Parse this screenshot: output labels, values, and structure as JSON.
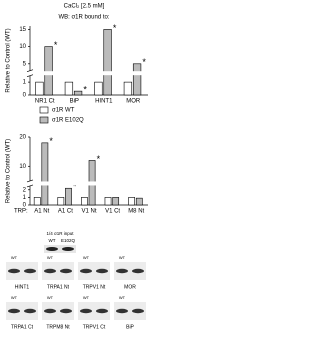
{
  "header": {
    "title": "CaCl₂ [2.5 mM]",
    "subtitle": "WB: σ1R bound to:"
  },
  "chart_data": [
    {
      "type": "bar",
      "y_label": "Relative to Control (WT)",
      "categories": [
        "NR1 Ct",
        "BiP",
        "HINT1",
        "MOR"
      ],
      "series": [
        {
          "name": "σ1R WT",
          "color": "#ffffff",
          "values": [
            1,
            1,
            1,
            1
          ]
        },
        {
          "name": "σ1R E102Q",
          "color": "#bbbbbb",
          "values": [
            10,
            0.3,
            15,
            5
          ],
          "markers": [
            "*",
            "*",
            "*",
            "*"
          ]
        }
      ],
      "ylim": [
        0,
        16
      ],
      "ybreak": [
        1.5,
        3
      ],
      "yticks": [
        0,
        1,
        5,
        10,
        15
      ]
    },
    {
      "type": "bar",
      "y_label": "Relative to Control (WT)",
      "x_label": "TRP:",
      "categories": [
        "A1 Nt",
        "A1 Ct",
        "V1 Nt",
        "V1 Ct",
        "M8 Nt"
      ],
      "series": [
        {
          "color": "#ffffff",
          "values": [
            1,
            1,
            1,
            1,
            1
          ]
        },
        {
          "color": "#bbbbbb",
          "values": [
            18,
            2.2,
            12,
            1,
            0.9
          ],
          "markers": [
            "*",
            "*",
            "*",
            null,
            null
          ]
        }
      ],
      "ylim": [
        0,
        20
      ],
      "ybreak": [
        2.5,
        5
      ],
      "yticks": [
        0,
        1,
        2,
        10,
        20
      ]
    }
  ],
  "blots": {
    "input_label": "1/4 σ1R input",
    "input_lanes": [
      "WT",
      "E102Q"
    ],
    "rows": [
      [
        {
          "label": "HINT1",
          "lane": "WT"
        },
        {
          "label": "TRPA1 Nt",
          "lane": "WT"
        },
        {
          "label": "TRPV1 Nt",
          "lane": "WT"
        },
        {
          "label": "MOR",
          "lane": "WT"
        }
      ],
      [
        {
          "label": "TRPA1 Ct",
          "lane": "WT"
        },
        {
          "label": "TRPM8 Nt",
          "lane": "WT"
        },
        {
          "label": "TRPV1 Ct",
          "lane": "WT"
        },
        {
          "label": "BiP",
          "lane": "WT"
        }
      ]
    ]
  }
}
